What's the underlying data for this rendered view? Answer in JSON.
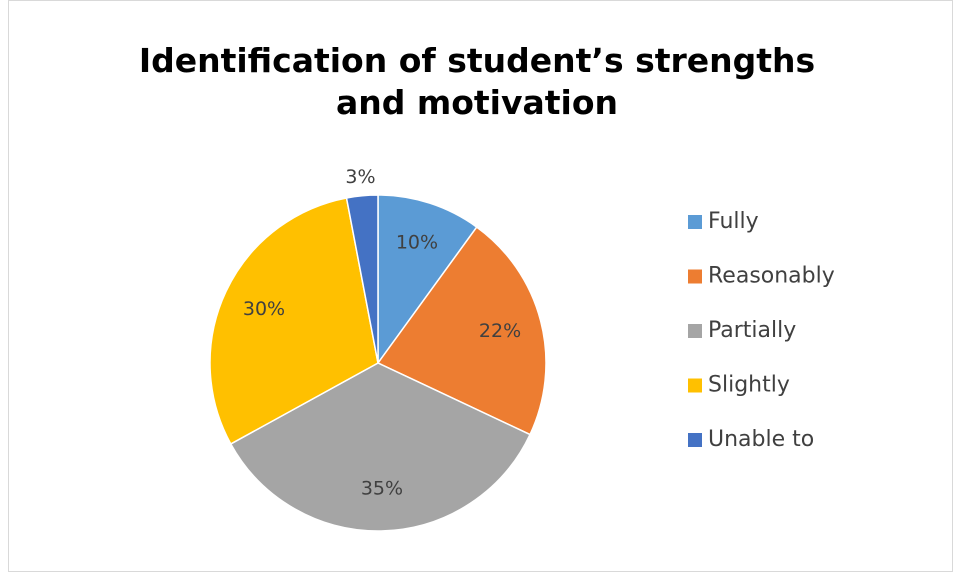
{
  "chart_data": {
    "type": "pie",
    "title": "Identification of student’s strengths and motivation",
    "categories": [
      "Fully",
      "Reasonably",
      "Partially",
      "Slightly",
      "Unable to"
    ],
    "values": [
      10,
      22,
      35,
      30,
      3
    ],
    "value_labels": [
      "10%",
      "22%",
      "35%",
      "30%",
      "3%"
    ],
    "colors": [
      "#5b9bd5",
      "#ed7d31",
      "#a5a5a5",
      "#ffc000",
      "#4472c4"
    ],
    "legend": "right"
  }
}
